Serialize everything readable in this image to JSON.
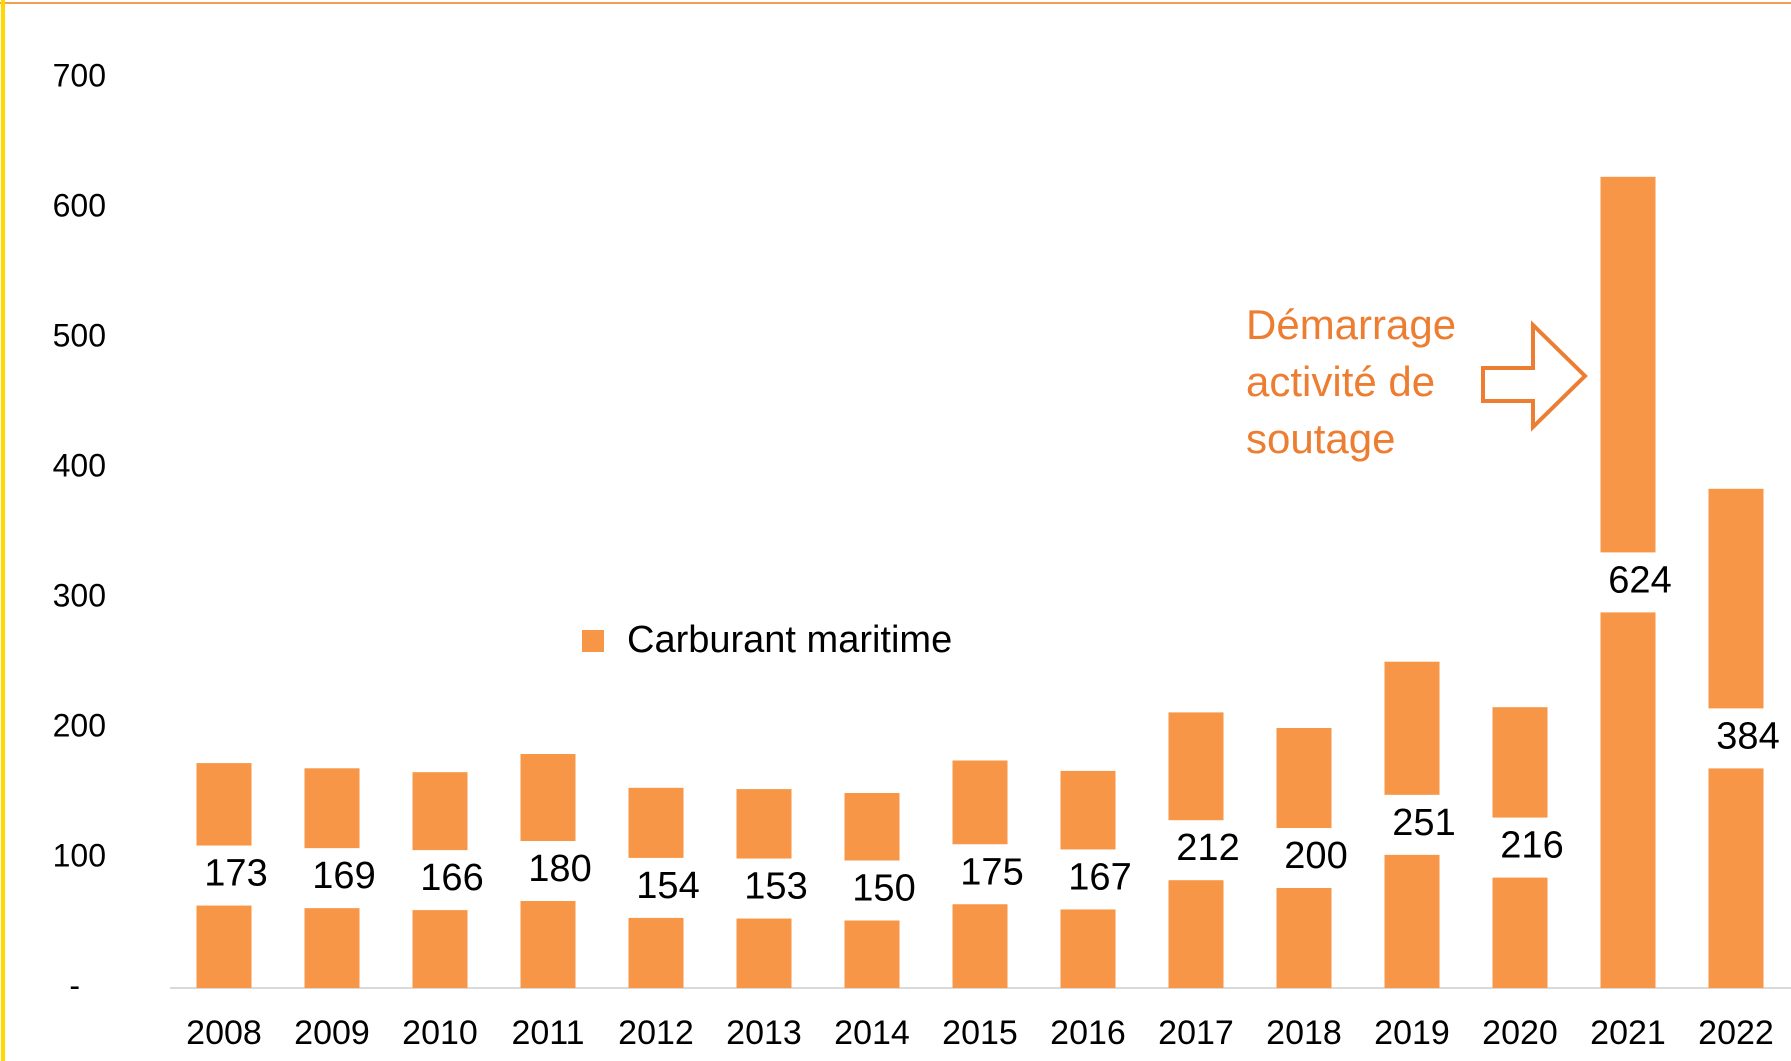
{
  "chart_data": {
    "type": "bar",
    "categories": [
      "2008",
      "2009",
      "2010",
      "2011",
      "2012",
      "2013",
      "2014",
      "2015",
      "2016",
      "2017",
      "2018",
      "2019",
      "2020",
      "2021",
      "2022"
    ],
    "series": [
      {
        "name": "Carburant maritime",
        "color": "#f79646",
        "values": [
          173,
          169,
          166,
          180,
          154,
          153,
          150,
          175,
          167,
          212,
          200,
          251,
          216,
          624,
          384
        ]
      }
    ],
    "ylim": [
      0,
      700
    ],
    "yticks": [
      {
        "value": 0,
        "label": "-"
      },
      100,
      200,
      300,
      400,
      500,
      600,
      700
    ],
    "annotation": [
      "Démarrage",
      "activité de",
      "soutage"
    ],
    "annotation_color": "#ed7d31",
    "data_labels": true
  }
}
